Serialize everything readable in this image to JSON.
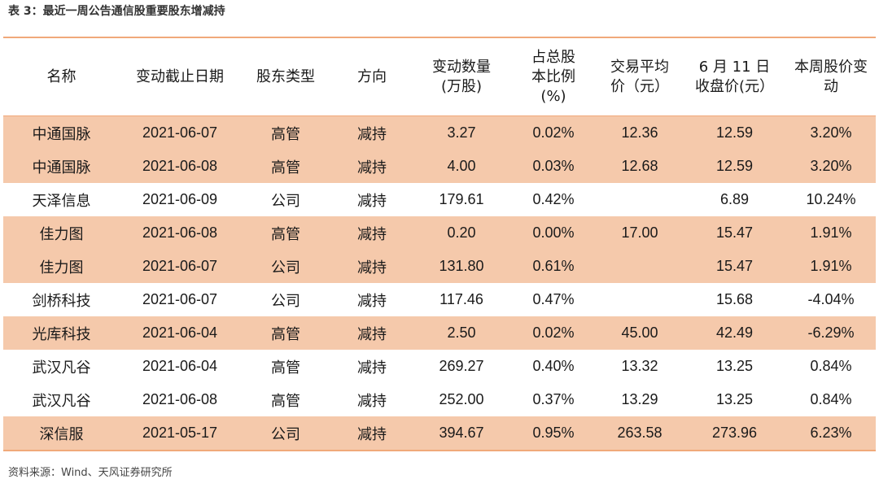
{
  "caption": "表 3：最近一周公告通信股重要股东增减持",
  "source": "资料来源：Wind、天风证券研究所",
  "colors": {
    "shaded_row": "#f5c9ab",
    "rule": "#f0a97a"
  },
  "columns": [
    {
      "lines": [
        "名称"
      ]
    },
    {
      "lines": [
        "变动截止日期"
      ]
    },
    {
      "lines": [
        "股东类型"
      ]
    },
    {
      "lines": [
        "方向"
      ]
    },
    {
      "lines": [
        "变动数量",
        "(万股)"
      ]
    },
    {
      "lines": [
        "占总股",
        "本比例",
        "(%)"
      ]
    },
    {
      "lines": [
        "交易平均",
        "价（元）"
      ]
    },
    {
      "lines": [
        "6 月 11 日",
        "收盘价(元）"
      ]
    },
    {
      "lines": [
        "本周股价变动"
      ]
    }
  ],
  "rows": [
    {
      "shaded": true,
      "cells": [
        "中通国脉",
        "2021-06-07",
        "高管",
        "减持",
        "3.27",
        "0.02%",
        "12.36",
        "12.59",
        "3.20%"
      ]
    },
    {
      "shaded": true,
      "cells": [
        "中通国脉",
        "2021-06-08",
        "高管",
        "减持",
        "4.00",
        "0.03%",
        "12.68",
        "12.59",
        "3.20%"
      ]
    },
    {
      "shaded": false,
      "cells": [
        "天泽信息",
        "2021-06-09",
        "公司",
        "减持",
        "179.61",
        "0.42%",
        "",
        "6.89",
        "10.24%"
      ]
    },
    {
      "shaded": true,
      "cells": [
        "佳力图",
        "2021-06-08",
        "高管",
        "减持",
        "0.20",
        "0.00%",
        "17.00",
        "15.47",
        "1.91%"
      ]
    },
    {
      "shaded": true,
      "cells": [
        "佳力图",
        "2021-06-07",
        "公司",
        "减持",
        "131.80",
        "0.61%",
        "",
        "15.47",
        "1.91%"
      ]
    },
    {
      "shaded": false,
      "cells": [
        "剑桥科技",
        "2021-06-07",
        "公司",
        "减持",
        "117.46",
        "0.47%",
        "",
        "15.68",
        "-4.04%"
      ]
    },
    {
      "shaded": true,
      "cells": [
        "光库科技",
        "2021-06-04",
        "高管",
        "减持",
        "2.50",
        "0.02%",
        "45.00",
        "42.49",
        "-6.29%"
      ]
    },
    {
      "shaded": false,
      "cells": [
        "武汉凡谷",
        "2021-06-04",
        "高管",
        "减持",
        "269.27",
        "0.40%",
        "13.32",
        "13.25",
        "0.84%"
      ]
    },
    {
      "shaded": false,
      "cells": [
        "武汉凡谷",
        "2021-06-08",
        "高管",
        "减持",
        "252.00",
        "0.37%",
        "13.29",
        "13.25",
        "0.84%"
      ]
    },
    {
      "shaded": true,
      "cells": [
        "深信服",
        "2021-05-17",
        "公司",
        "减持",
        "394.67",
        "0.95%",
        "263.58",
        "273.96",
        "6.23%"
      ]
    }
  ]
}
